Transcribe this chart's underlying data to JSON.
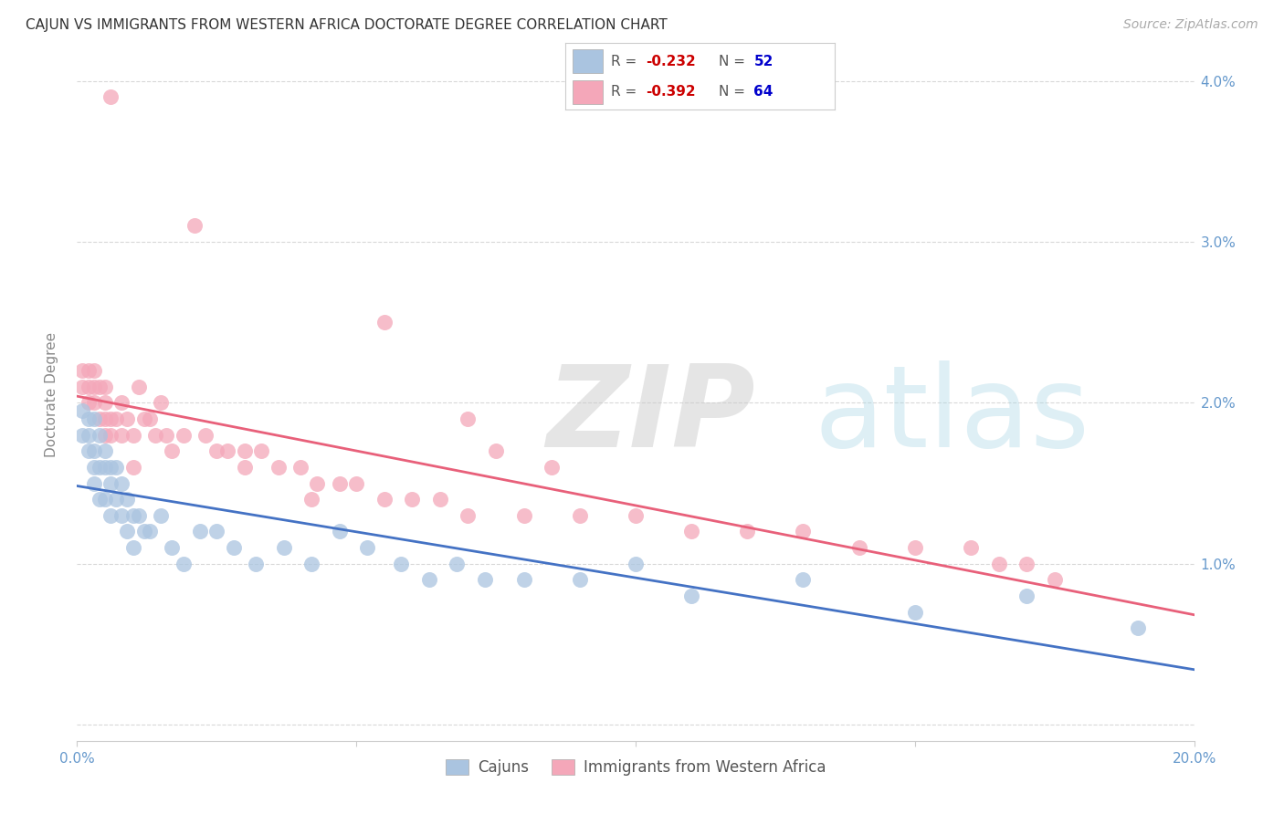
{
  "title": "CAJUN VS IMMIGRANTS FROM WESTERN AFRICA DOCTORATE DEGREE CORRELATION CHART",
  "source": "Source: ZipAtlas.com",
  "ylabel": "Doctorate Degree",
  "xlim": [
    0.0,
    0.2
  ],
  "ylim": [
    -0.001,
    0.042
  ],
  "xticks": [
    0.0,
    0.05,
    0.1,
    0.15,
    0.2
  ],
  "yticks": [
    0.0,
    0.01,
    0.02,
    0.03,
    0.04
  ],
  "xticklabels_show": [
    "0.0%",
    "",
    "",
    "",
    "20.0%"
  ],
  "yticklabels_right": [
    "",
    "1.0%",
    "2.0%",
    "3.0%",
    "4.0%"
  ],
  "cajun_color": "#aac4e0",
  "western_africa_color": "#f4a7b9",
  "cajun_line_color": "#4472c4",
  "western_africa_line_color": "#e8607a",
  "background_color": "#ffffff",
  "grid_color": "#d8d8d8",
  "title_color": "#333333",
  "axis_label_color": "#888888",
  "tick_color": "#6699cc",
  "watermark_zip": "ZIP",
  "watermark_atlas": "atlas",
  "cajun_x": [
    0.001,
    0.001,
    0.002,
    0.002,
    0.002,
    0.003,
    0.003,
    0.003,
    0.003,
    0.004,
    0.004,
    0.004,
    0.005,
    0.005,
    0.005,
    0.006,
    0.006,
    0.006,
    0.007,
    0.007,
    0.008,
    0.008,
    0.009,
    0.009,
    0.01,
    0.01,
    0.011,
    0.012,
    0.013,
    0.015,
    0.017,
    0.019,
    0.022,
    0.025,
    0.028,
    0.032,
    0.037,
    0.042,
    0.047,
    0.052,
    0.058,
    0.063,
    0.068,
    0.073,
    0.08,
    0.09,
    0.1,
    0.11,
    0.13,
    0.15,
    0.17,
    0.19
  ],
  "cajun_y": [
    0.0195,
    0.018,
    0.019,
    0.018,
    0.017,
    0.019,
    0.017,
    0.016,
    0.015,
    0.018,
    0.016,
    0.014,
    0.017,
    0.016,
    0.014,
    0.016,
    0.015,
    0.013,
    0.016,
    0.014,
    0.015,
    0.013,
    0.014,
    0.012,
    0.013,
    0.011,
    0.013,
    0.012,
    0.012,
    0.013,
    0.011,
    0.01,
    0.012,
    0.012,
    0.011,
    0.01,
    0.011,
    0.01,
    0.012,
    0.011,
    0.01,
    0.009,
    0.01,
    0.009,
    0.009,
    0.009,
    0.01,
    0.008,
    0.009,
    0.007,
    0.008,
    0.006
  ],
  "western_x": [
    0.001,
    0.001,
    0.002,
    0.002,
    0.002,
    0.003,
    0.003,
    0.003,
    0.004,
    0.004,
    0.005,
    0.005,
    0.005,
    0.006,
    0.006,
    0.006,
    0.007,
    0.008,
    0.008,
    0.009,
    0.01,
    0.011,
    0.012,
    0.013,
    0.014,
    0.015,
    0.016,
    0.017,
    0.019,
    0.021,
    0.023,
    0.025,
    0.027,
    0.03,
    0.033,
    0.036,
    0.04,
    0.043,
    0.047,
    0.05,
    0.055,
    0.06,
    0.065,
    0.07,
    0.08,
    0.09,
    0.1,
    0.11,
    0.12,
    0.13,
    0.14,
    0.15,
    0.16,
    0.165,
    0.17,
    0.175,
    0.055,
    0.042,
    0.075,
    0.085,
    0.01,
    0.005,
    0.03,
    0.07
  ],
  "western_y": [
    0.022,
    0.021,
    0.022,
    0.021,
    0.02,
    0.022,
    0.021,
    0.02,
    0.021,
    0.019,
    0.021,
    0.02,
    0.018,
    0.039,
    0.019,
    0.018,
    0.019,
    0.02,
    0.018,
    0.019,
    0.018,
    0.021,
    0.019,
    0.019,
    0.018,
    0.02,
    0.018,
    0.017,
    0.018,
    0.031,
    0.018,
    0.017,
    0.017,
    0.016,
    0.017,
    0.016,
    0.016,
    0.015,
    0.015,
    0.015,
    0.014,
    0.014,
    0.014,
    0.013,
    0.013,
    0.013,
    0.013,
    0.012,
    0.012,
    0.012,
    0.011,
    0.011,
    0.011,
    0.01,
    0.01,
    0.009,
    0.025,
    0.014,
    0.017,
    0.016,
    0.016,
    0.019,
    0.017,
    0.019
  ]
}
